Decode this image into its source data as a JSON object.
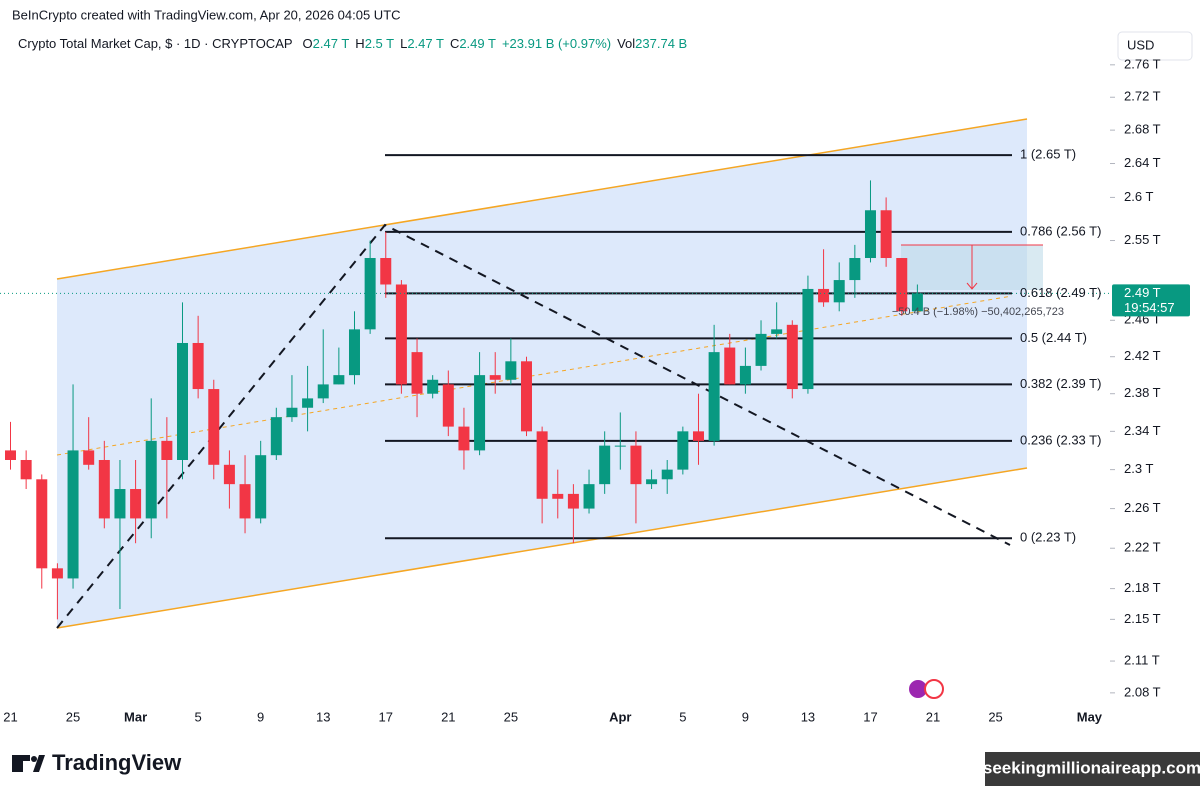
{
  "header": {
    "attribution": "BeInCrypto created with TradingView.com, Apr 20, 2026 04:05 UTC",
    "currency": "USD",
    "brand": "TradingView",
    "watermark": "seekingmillionaireapp.com"
  },
  "chart_data": {
    "type": "candlestick",
    "title": "Crypto Total Market Cap, $ · 1D · CRYPTOCAP",
    "legend_values": [
      {
        "key": "O",
        "text": "2.47 T"
      },
      {
        "key": "H",
        "text": "2.5 T"
      },
      {
        "key": "L",
        "text": "2.47 T"
      },
      {
        "key": "C",
        "text": "2.49 T"
      }
    ],
    "change": "+23.91 B (+0.97%)",
    "volume": {
      "key": "Vol",
      "text": "237.74 B"
    },
    "categories": [
      "21",
      null,
      null,
      null,
      "25",
      null,
      null,
      null,
      "Mar",
      null,
      null,
      null,
      "5",
      null,
      null,
      null,
      "9",
      null,
      null,
      null,
      "13",
      null,
      null,
      null,
      "17",
      null,
      null,
      null,
      "21",
      null,
      null,
      null,
      "25",
      null,
      null,
      null,
      null,
      null,
      null,
      "Apr",
      null,
      null,
      null,
      "5",
      null,
      null,
      null,
      "9",
      null,
      null,
      null,
      "13",
      null,
      null,
      null,
      "17",
      null,
      null,
      null,
      "21",
      null,
      null,
      null,
      "25",
      null,
      null,
      null,
      null,
      null,
      "May",
      null
    ],
    "open": [
      2.32,
      2.31,
      2.29,
      2.2,
      2.19,
      2.32,
      2.31,
      2.25,
      2.28,
      2.25,
      2.33,
      2.31,
      2.435,
      2.385,
      2.305,
      2.285,
      2.25,
      2.315,
      2.355,
      2.365,
      2.375,
      2.39,
      2.4,
      2.45,
      2.53,
      2.5,
      2.425,
      2.38,
      2.39,
      2.345,
      2.32,
      2.4,
      2.395,
      2.415,
      2.34,
      2.275,
      2.275,
      2.26,
      2.285,
      2.325,
      2.325,
      2.285,
      2.29,
      2.3,
      2.34,
      2.33,
      2.43,
      2.39,
      2.41,
      2.445,
      2.455,
      2.385,
      2.495,
      2.48,
      2.505,
      2.53,
      2.585,
      2.53,
      2.47,
      null,
      null,
      null,
      null,
      null,
      null,
      null,
      null,
      null,
      null,
      null,
      null
    ],
    "high": [
      2.35,
      2.32,
      2.295,
      2.205,
      2.39,
      2.355,
      2.33,
      2.31,
      2.31,
      2.375,
      2.355,
      2.48,
      2.465,
      2.395,
      2.32,
      2.315,
      2.33,
      2.365,
      2.4,
      2.41,
      2.45,
      2.43,
      2.47,
      2.55,
      2.56,
      2.505,
      2.44,
      2.4,
      2.405,
      2.365,
      2.425,
      2.425,
      2.44,
      2.42,
      2.345,
      2.3,
      2.285,
      2.3,
      2.34,
      2.36,
      2.34,
      2.3,
      2.31,
      2.345,
      2.38,
      2.455,
      2.445,
      2.43,
      2.46,
      2.48,
      2.46,
      2.51,
      2.54,
      2.525,
      2.545,
      2.62,
      2.6,
      2.53,
      2.5,
      null,
      null,
      null,
      null,
      null,
      null,
      null,
      null,
      null,
      null,
      null,
      null
    ],
    "low": [
      2.3,
      2.28,
      2.18,
      2.15,
      2.18,
      2.3,
      2.24,
      2.16,
      2.225,
      2.23,
      2.25,
      2.29,
      2.375,
      2.29,
      2.26,
      2.235,
      2.245,
      2.31,
      2.35,
      2.34,
      2.37,
      2.39,
      2.39,
      2.445,
      2.485,
      2.38,
      2.355,
      2.375,
      2.335,
      2.3,
      2.315,
      2.38,
      2.39,
      2.335,
      2.245,
      2.25,
      2.225,
      2.255,
      2.275,
      2.3,
      2.245,
      2.28,
      2.275,
      2.295,
      2.305,
      2.325,
      2.39,
      2.38,
      2.405,
      2.44,
      2.375,
      2.38,
      2.475,
      2.47,
      2.485,
      2.525,
      2.52,
      2.465,
      2.47,
      null,
      null,
      null,
      null,
      null,
      null,
      null,
      null,
      null,
      null,
      null,
      null
    ],
    "close": [
      2.31,
      2.29,
      2.2,
      2.19,
      2.32,
      2.305,
      2.25,
      2.28,
      2.25,
      2.33,
      2.31,
      2.435,
      2.385,
      2.305,
      2.285,
      2.25,
      2.315,
      2.355,
      2.365,
      2.375,
      2.39,
      2.4,
      2.45,
      2.53,
      2.5,
      2.39,
      2.38,
      2.395,
      2.345,
      2.32,
      2.4,
      2.395,
      2.415,
      2.34,
      2.27,
      2.27,
      2.26,
      2.285,
      2.325,
      2.325,
      2.285,
      2.29,
      2.3,
      2.34,
      2.33,
      2.425,
      2.39,
      2.41,
      2.445,
      2.45,
      2.385,
      2.495,
      2.48,
      2.505,
      2.53,
      2.585,
      2.53,
      2.47,
      2.49,
      null,
      null,
      null,
      null,
      null,
      null,
      null,
      null,
      null,
      null,
      null,
      null
    ],
    "up_color": "#089981",
    "down_color": "#f23645",
    "log_scale": true,
    "ylim": [
      2.064,
      2.766
    ],
    "yticks": [
      {
        "value": 2.08,
        "label": "2.08 T"
      },
      {
        "value": 2.11,
        "label": "2.11 T"
      },
      {
        "value": 2.15,
        "label": "2.15 T"
      },
      {
        "value": 2.18,
        "label": "2.18 T"
      },
      {
        "value": 2.22,
        "label": "2.22 T"
      },
      {
        "value": 2.26,
        "label": "2.26 T"
      },
      {
        "value": 2.3,
        "label": "2.3 T"
      },
      {
        "value": 2.34,
        "label": "2.34 T"
      },
      {
        "value": 2.38,
        "label": "2.38 T"
      },
      {
        "value": 2.42,
        "label": "2.42 T"
      },
      {
        "value": 2.46,
        "label": "2.46 T"
      },
      {
        "value": 2.55,
        "label": "2.55 T"
      },
      {
        "value": 2.6,
        "label": "2.6 T"
      },
      {
        "value": 2.64,
        "label": "2.64 T"
      },
      {
        "value": 2.68,
        "label": "2.68 T"
      },
      {
        "value": 2.72,
        "label": "2.72 T"
      },
      {
        "value": 2.76,
        "label": "2.76 T"
      }
    ],
    "fib_levels": [
      {
        "value": 2.65,
        "label": "1 (2.65 T)"
      },
      {
        "value": 2.56,
        "label": "0.786 (2.56 T)"
      },
      {
        "value": 2.49,
        "label": "0.618 (2.49 T)"
      },
      {
        "value": 2.44,
        "label": "0.5 (2.44 T)"
      },
      {
        "value": 2.39,
        "label": "0.382 (2.39 T)"
      },
      {
        "value": 2.33,
        "label": "0.236 (2.33 T)"
      },
      {
        "value": 2.23,
        "label": "0 (2.23 T)"
      }
    ],
    "last_price": {
      "label": "2.49 T",
      "countdown": "19:54:57"
    },
    "measure": "−50.4 B (−1.98%)  −50,402,265,723"
  }
}
